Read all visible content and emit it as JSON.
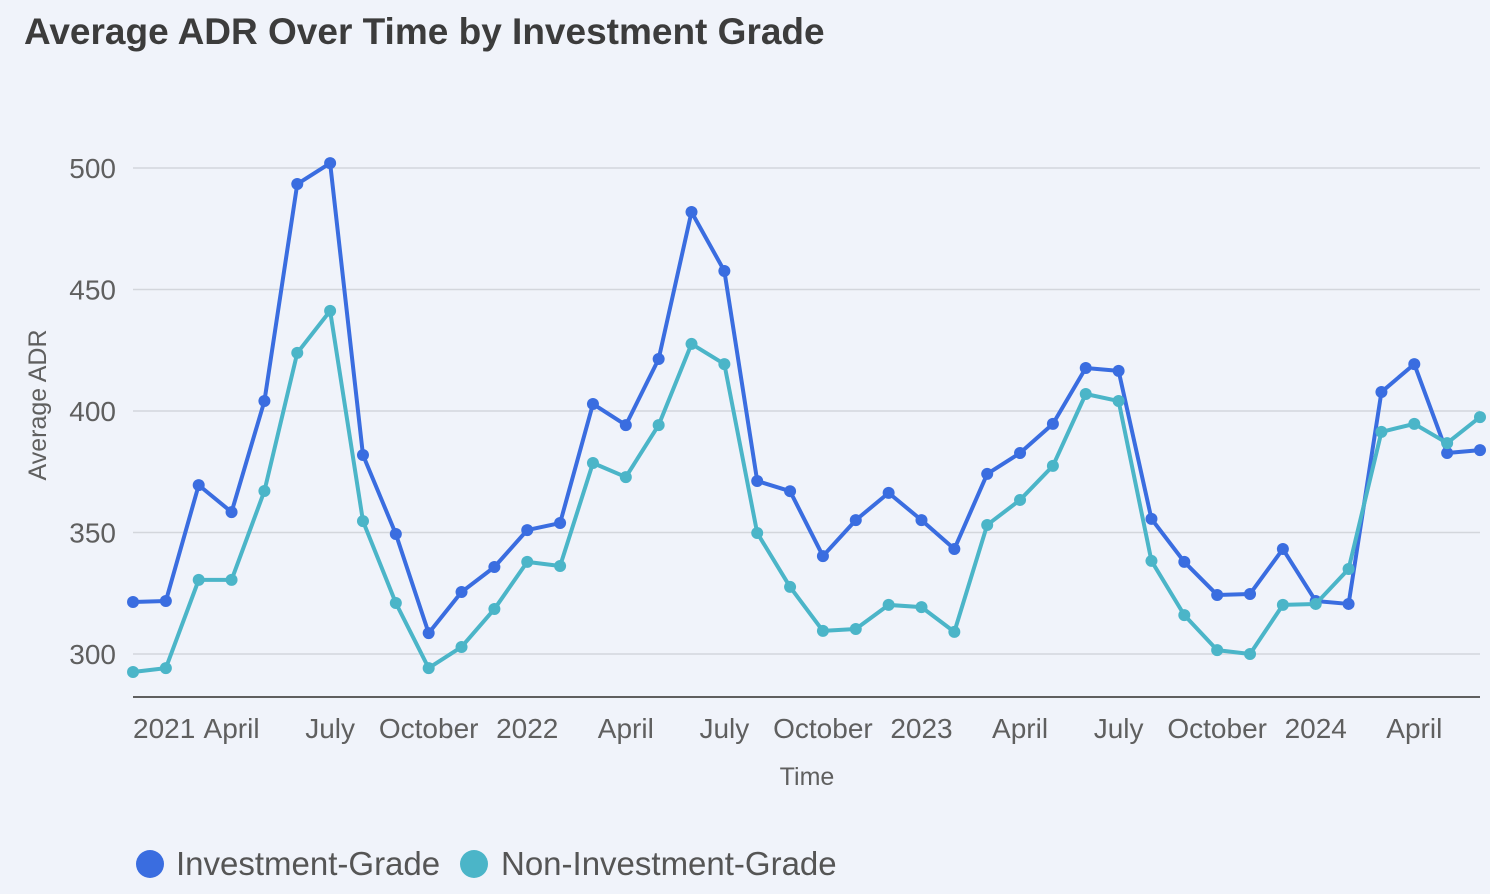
{
  "chart_data": {
    "type": "line",
    "title": "Average ADR Over Time by Investment Grade",
    "xlabel": "Time",
    "ylabel": "Average ADR",
    "ylim": [
      282,
      500
    ],
    "yticks": [
      300,
      350,
      400,
      450,
      500
    ],
    "grid": true,
    "legend_position": "bottom-left",
    "x_start": "2021-01",
    "x_frequency": "monthly",
    "xticks": [
      {
        "label": "2021",
        "index": 0
      },
      {
        "label": "April",
        "index": 3
      },
      {
        "label": "July",
        "index": 6
      },
      {
        "label": "October",
        "index": 9
      },
      {
        "label": "2022",
        "index": 12
      },
      {
        "label": "April",
        "index": 15
      },
      {
        "label": "July",
        "index": 18
      },
      {
        "label": "October",
        "index": 21
      },
      {
        "label": "2023",
        "index": 24
      },
      {
        "label": "April",
        "index": 27
      },
      {
        "label": "July",
        "index": 30
      },
      {
        "label": "October",
        "index": 33
      },
      {
        "label": "2024",
        "index": 36
      },
      {
        "label": "April",
        "index": 39
      }
    ],
    "series": [
      {
        "name": "Investment-Grade",
        "color": "#3a6de0",
        "values": [
          321.4,
          321.8,
          369.5,
          358.4,
          404.1,
          493.4,
          502,
          381.9,
          349.4,
          308.6,
          325.5,
          335.8,
          351,
          353.9,
          402.9,
          394.2,
          421.4,
          481.9,
          457.6,
          371.2,
          367,
          340.3,
          355.1,
          366.3,
          355.1,
          343.2,
          374.1,
          382.7,
          394.7,
          417.7,
          416.5,
          355.6,
          337.9,
          324.3,
          324.7,
          343.2,
          321.8,
          320.6,
          407.8,
          419.3,
          382.7,
          383.9
        ]
      },
      {
        "name": "Non-Investment-Grade",
        "color": "#4bb5c8",
        "values": [
          292.6,
          294.2,
          330.5,
          330.5,
          367.1,
          423.9,
          441.2,
          354.7,
          321,
          294.2,
          302.9,
          318.5,
          337.9,
          336.2,
          378.6,
          372.8,
          394.2,
          427.6,
          419.3,
          349.8,
          327.6,
          309.5,
          310.3,
          320.2,
          319.3,
          309.1,
          353.1,
          363.4,
          377.4,
          407,
          404.1,
          338.3,
          316,
          301.6,
          300,
          320.2,
          320.6,
          335,
          391.4,
          394.7,
          386.8,
          397.5
        ]
      }
    ]
  }
}
